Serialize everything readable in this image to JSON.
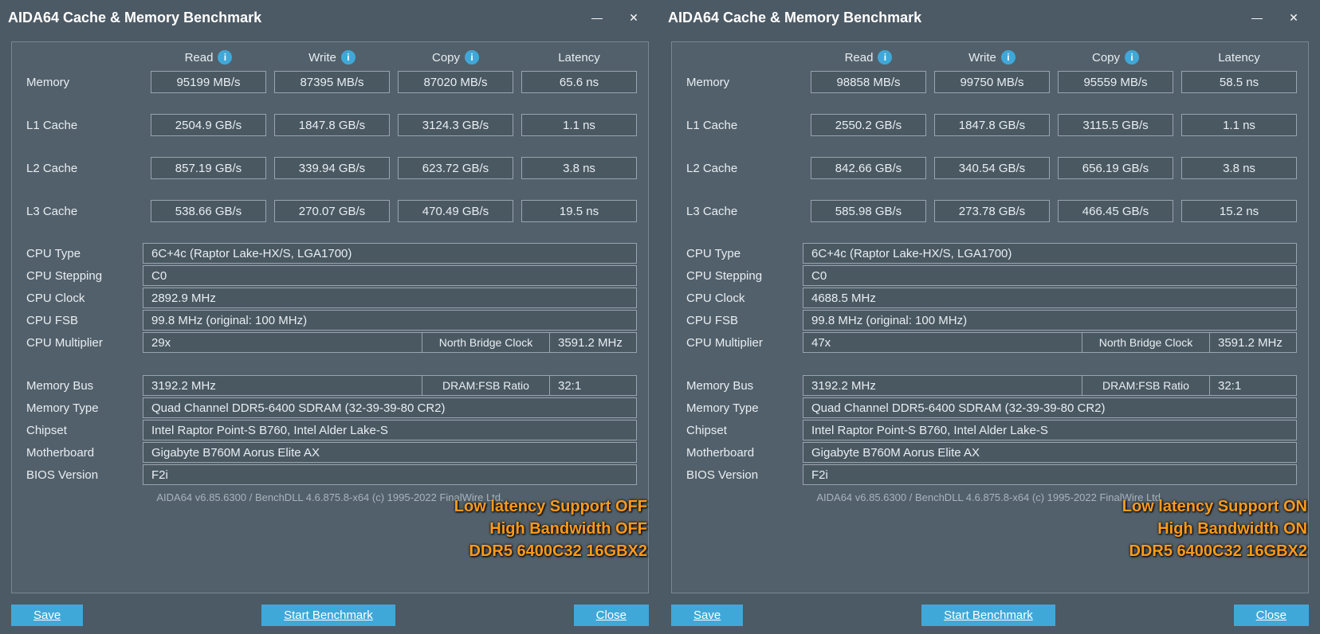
{
  "app_title": "AIDA64 Cache & Memory Benchmark",
  "col_headers": {
    "read": "Read",
    "write": "Write",
    "copy": "Copy",
    "latency": "Latency"
  },
  "row_labels": {
    "memory": "Memory",
    "l1": "L1 Cache",
    "l2": "L2 Cache",
    "l3": "L3 Cache"
  },
  "info_labels": {
    "cpu_type": "CPU Type",
    "cpu_stepping": "CPU Stepping",
    "cpu_clock": "CPU Clock",
    "cpu_fsb": "CPU FSB",
    "cpu_mult": "CPU Multiplier",
    "nb_clock": "North Bridge Clock",
    "mem_bus": "Memory Bus",
    "dram_fsb": "DRAM:FSB Ratio",
    "mem_type": "Memory Type",
    "chipset": "Chipset",
    "mobo": "Motherboard",
    "bios": "BIOS Version"
  },
  "buttons": {
    "save": "Save",
    "start": "Start Benchmark",
    "close": "Close"
  },
  "footer": "AIDA64 v6.85.6300 / BenchDLL 4.6.875.8-x64  (c) 1995-2022 FinalWire Ltd.",
  "panels": [
    {
      "bench": {
        "memory": {
          "read": "95199 MB/s",
          "write": "87395 MB/s",
          "copy": "87020 MB/s",
          "latency": "65.6 ns"
        },
        "l1": {
          "read": "2504.9 GB/s",
          "write": "1847.8 GB/s",
          "copy": "3124.3 GB/s",
          "latency": "1.1 ns"
        },
        "l2": {
          "read": "857.19 GB/s",
          "write": "339.94 GB/s",
          "copy": "623.72 GB/s",
          "latency": "3.8 ns"
        },
        "l3": {
          "read": "538.66 GB/s",
          "write": "270.07 GB/s",
          "copy": "470.49 GB/s",
          "latency": "19.5 ns"
        }
      },
      "info": {
        "cpu_type": "6C+4c   (Raptor Lake-HX/S, LGA1700)",
        "cpu_stepping": "C0",
        "cpu_clock": "2892.9 MHz",
        "cpu_fsb": "99.8 MHz  (original: 100 MHz)",
        "cpu_mult": "29x",
        "nb_clock": "3591.2 MHz",
        "mem_bus": "3192.2 MHz",
        "dram_fsb": "32:1",
        "mem_type": "Quad Channel DDR5-6400 SDRAM  (32-39-39-80 CR2)",
        "chipset": "Intel Raptor Point-S B760, Intel Alder Lake-S",
        "mobo": "Gigabyte B760M Aorus Elite AX",
        "bios": "F2i"
      },
      "overlay": {
        "l1": "Low latency Support OFF",
        "l2": "High Bandwidth OFF",
        "l3": "DDR5 6400C32 16GBX2"
      }
    },
    {
      "bench": {
        "memory": {
          "read": "98858 MB/s",
          "write": "99750 MB/s",
          "copy": "95559 MB/s",
          "latency": "58.5 ns"
        },
        "l1": {
          "read": "2550.2 GB/s",
          "write": "1847.8 GB/s",
          "copy": "3115.5 GB/s",
          "latency": "1.1 ns"
        },
        "l2": {
          "read": "842.66 GB/s",
          "write": "340.54 GB/s",
          "copy": "656.19 GB/s",
          "latency": "3.8 ns"
        },
        "l3": {
          "read": "585.98 GB/s",
          "write": "273.78 GB/s",
          "copy": "466.45 GB/s",
          "latency": "15.2 ns"
        }
      },
      "info": {
        "cpu_type": "6C+4c   (Raptor Lake-HX/S, LGA1700)",
        "cpu_stepping": "C0",
        "cpu_clock": "4688.5 MHz",
        "cpu_fsb": "99.8 MHz  (original: 100 MHz)",
        "cpu_mult": "47x",
        "nb_clock": "3591.2 MHz",
        "mem_bus": "3192.2 MHz",
        "dram_fsb": "32:1",
        "mem_type": "Quad Channel DDR5-6400 SDRAM  (32-39-39-80 CR2)",
        "chipset": "Intel Raptor Point-S B760, Intel Alder Lake-S",
        "mobo": "Gigabyte B760M Aorus Elite AX",
        "bios": "F2i"
      },
      "overlay": {
        "l1": "Low latency Support ON",
        "l2": "High Bandwidth ON",
        "l3": "DDR5 6400C32 16GBX2"
      }
    }
  ]
}
